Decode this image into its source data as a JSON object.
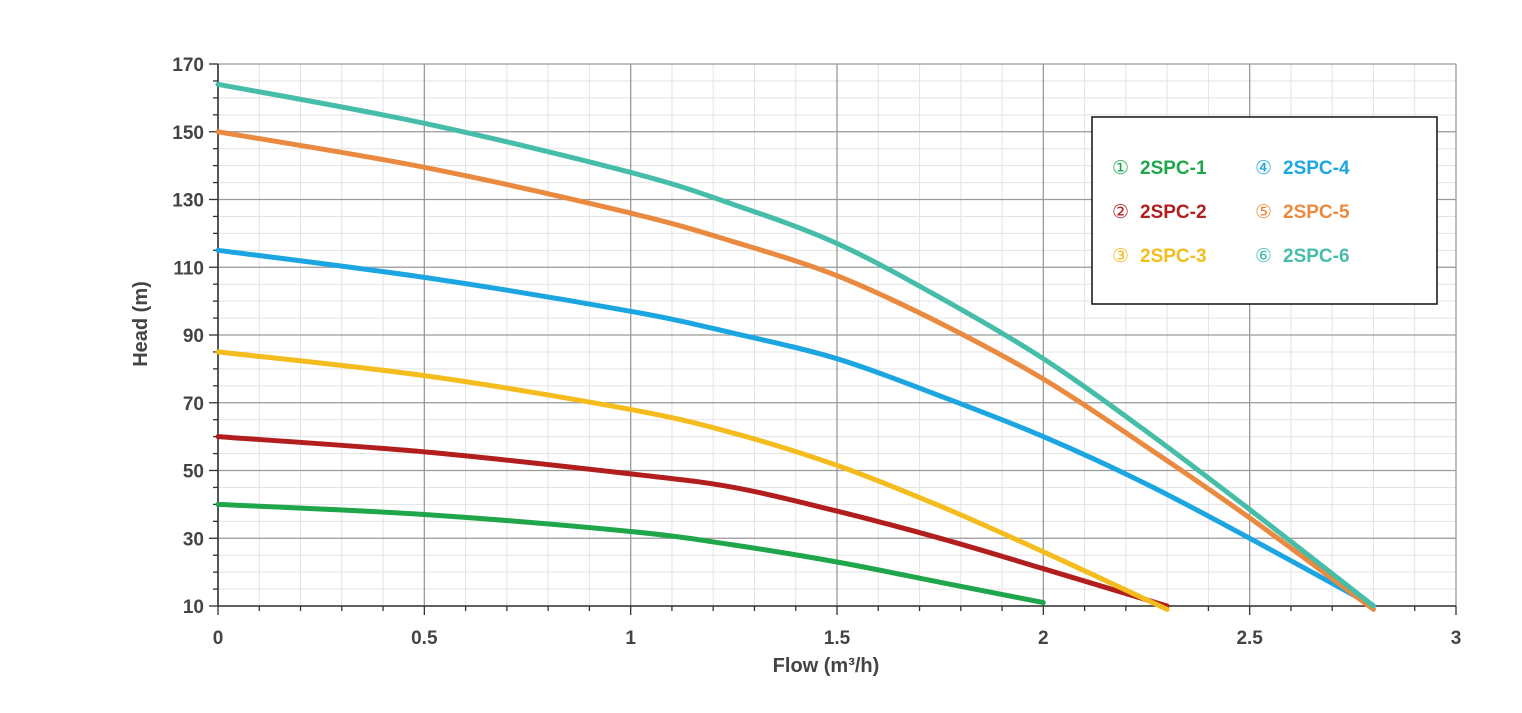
{
  "chart_data": {
    "type": "line",
    "title": "",
    "xlabel": "Flow (m³/h)",
    "ylabel": "Head (m)",
    "xlim": [
      0,
      3
    ],
    "ylim": [
      10,
      170
    ],
    "x_ticks": [
      0,
      0.5,
      1,
      1.5,
      2,
      2.5,
      3
    ],
    "x_tick_labels": [
      "0",
      "0.5",
      "1",
      "1.5",
      "2",
      "2.5",
      "3"
    ],
    "y_ticks": [
      10,
      30,
      50,
      70,
      90,
      110,
      130,
      150,
      170
    ],
    "y_tick_labels": [
      "10",
      "30",
      "50",
      "70",
      "90",
      "110",
      "130",
      "150",
      "170"
    ],
    "grid": true,
    "legend_position": "top-right",
    "series": [
      {
        "marker": "①",
        "name": "2SPC-1",
        "color": "#1fa64a",
        "x": [
          0,
          0.5,
          1,
          1.25,
          1.5,
          1.75,
          2
        ],
        "y": [
          40,
          37,
          32,
          28,
          23,
          17,
          11
        ]
      },
      {
        "marker": "②",
        "name": "2SPC-2",
        "color": "#b21e1e",
        "x": [
          0,
          0.5,
          1,
          1.25,
          1.5,
          1.75,
          2,
          2.3
        ],
        "y": [
          60,
          55.5,
          49,
          45,
          38,
          30,
          21,
          10
        ]
      },
      {
        "marker": "③",
        "name": "2SPC-3",
        "color": "#f4bc1c",
        "x": [
          0,
          0.5,
          1,
          1.25,
          1.5,
          1.75,
          2,
          2.3
        ],
        "y": [
          85,
          78,
          68,
          61,
          51.5,
          39.5,
          26,
          9
        ]
      },
      {
        "marker": "④",
        "name": "2SPC-4",
        "color": "#1ba6e2",
        "x": [
          0,
          0.5,
          1,
          1.25,
          1.5,
          1.75,
          2,
          2.25,
          2.5,
          2.8
        ],
        "y": [
          115,
          107,
          97,
          90.5,
          83,
          72,
          60,
          46,
          30,
          10
        ]
      },
      {
        "marker": "⑤",
        "name": "2SPC-5",
        "color": "#ea8a40",
        "x": [
          0,
          0.5,
          1,
          1.25,
          1.5,
          1.75,
          2,
          2.25,
          2.5,
          2.8
        ],
        "y": [
          150,
          139.5,
          126,
          117.5,
          107.5,
          93.5,
          77,
          57,
          36,
          9
        ]
      },
      {
        "marker": "⑥",
        "name": "2SPC-6",
        "color": "#45bda8",
        "x": [
          0,
          0.5,
          1,
          1.25,
          1.5,
          1.75,
          2,
          2.25,
          2.5,
          2.8
        ],
        "y": [
          164,
          152.5,
          138,
          128.5,
          117,
          101,
          83,
          61.5,
          38.5,
          10
        ]
      }
    ]
  }
}
